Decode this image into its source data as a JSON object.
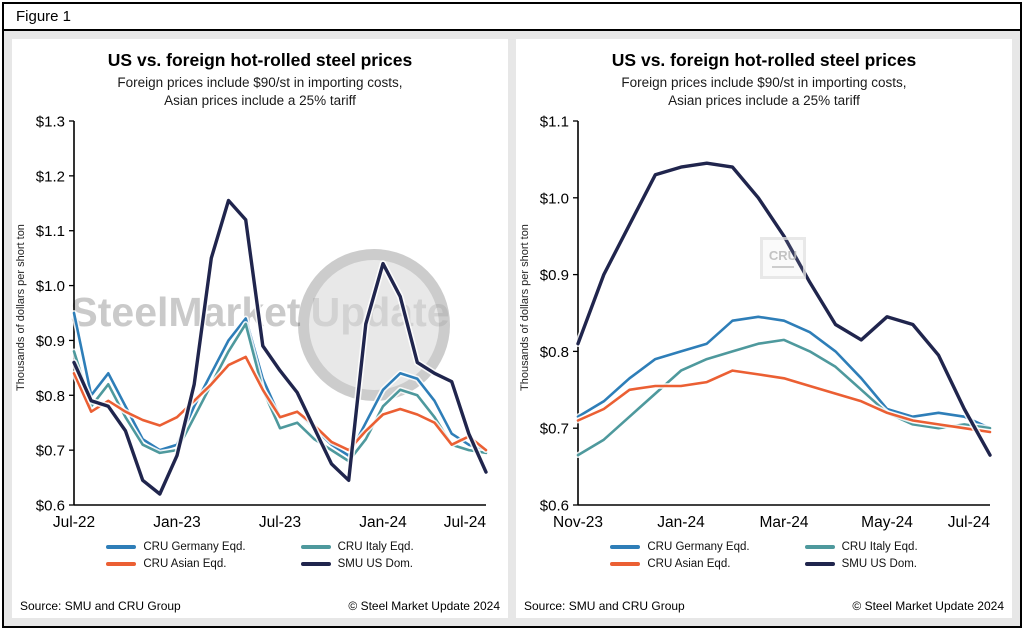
{
  "figure_label": "Figure 1",
  "panels": [
    {
      "title": "US vs. foreign hot-rolled steel prices",
      "subtitle1": "Foreign prices include $90/st in importing costs,",
      "subtitle2": "Asian prices include a 25% tariff",
      "ylabel": "Thousands of dollars per short ton",
      "source": "Source: SMU and CRU Group",
      "copyright": "© Steel Market Update 2024",
      "watermark_main": "SteelMarket",
      "watermark_sub": "Update"
    },
    {
      "title": "US vs. foreign hot-rolled steel prices",
      "subtitle1": "Foreign prices include $90/st in importing costs,",
      "subtitle2": "Asian prices include a 25% tariff",
      "ylabel": "Thousands of dollars per short ton",
      "source": "Source: SMU and CRU Group",
      "copyright": "© Steel Market Update 2024",
      "watermark_cru": "CRU"
    }
  ],
  "legend": {
    "items": [
      {
        "label": "CRU Germany Eqd.",
        "color": "#2e7eb8"
      },
      {
        "label": "CRU Italy Eqd.",
        "color": "#4e999d"
      },
      {
        "label": "CRU Asian Eqd.",
        "color": "#eb5f33"
      },
      {
        "label": "SMU US Dom.",
        "color": "#20254d"
      }
    ]
  },
  "chart_data": [
    {
      "type": "line",
      "title": "US vs. foreign hot-rolled steel prices",
      "subtitle": "Foreign prices include $90/st in importing costs, Asian prices include a 25% tariff",
      "ylabel": "Thousands of dollars per short ton",
      "ylim": [
        0.6,
        1.3
      ],
      "ytick_step": 0.1,
      "ytick_format": "$0.0",
      "grid": false,
      "legend_position": "bottom",
      "x_months": [
        "Jul-22",
        "Aug-22",
        "Sep-22",
        "Oct-22",
        "Nov-22",
        "Dec-22",
        "Jan-23",
        "Feb-23",
        "Mar-23",
        "Apr-23",
        "May-23",
        "Jun-23",
        "Jul-23",
        "Aug-23",
        "Sep-23",
        "Oct-23",
        "Nov-23",
        "Dec-23",
        "Jan-24",
        "Feb-24",
        "Mar-24",
        "Apr-24",
        "May-24",
        "Jun-24",
        "Jul-24"
      ],
      "x_ticks": [
        {
          "index": 0,
          "label": "Jul-22"
        },
        {
          "index": 6,
          "label": "Jan-23"
        },
        {
          "index": 12,
          "label": "Jul-23"
        },
        {
          "index": 18,
          "label": "Jan-24"
        },
        {
          "index": 24,
          "label": "Jul-24"
        }
      ],
      "series": [
        {
          "name": "CRU Germany Eqd.",
          "color": "#2e7eb8",
          "values": [
            0.95,
            0.8,
            0.84,
            0.78,
            0.72,
            0.7,
            0.71,
            0.78,
            0.84,
            0.9,
            0.94,
            0.83,
            0.76,
            0.77,
            0.74,
            0.71,
            0.69,
            0.75,
            0.81,
            0.84,
            0.83,
            0.79,
            0.73,
            0.71,
            0.7
          ]
        },
        {
          "name": "CRU Italy Eqd.",
          "color": "#4e999d",
          "values": [
            0.88,
            0.78,
            0.82,
            0.76,
            0.71,
            0.695,
            0.7,
            0.76,
            0.82,
            0.88,
            0.93,
            0.81,
            0.74,
            0.75,
            0.72,
            0.7,
            0.68,
            0.72,
            0.78,
            0.81,
            0.8,
            0.76,
            0.71,
            0.7,
            0.695
          ]
        },
        {
          "name": "CRU Asian Eqd.",
          "color": "#eb5f33",
          "values": [
            0.84,
            0.77,
            0.79,
            0.77,
            0.755,
            0.745,
            0.76,
            0.79,
            0.82,
            0.855,
            0.87,
            0.81,
            0.76,
            0.77,
            0.745,
            0.715,
            0.7,
            0.735,
            0.765,
            0.775,
            0.765,
            0.75,
            0.71,
            0.725,
            0.7
          ]
        },
        {
          "name": "SMU US Dom.",
          "color": "#20254d",
          "values": [
            0.86,
            0.79,
            0.78,
            0.735,
            0.645,
            0.62,
            0.69,
            0.82,
            1.05,
            1.155,
            1.12,
            0.89,
            0.845,
            0.805,
            0.74,
            0.675,
            0.645,
            0.93,
            1.04,
            0.98,
            0.86,
            0.84,
            0.825,
            0.73,
            0.66
          ]
        }
      ]
    },
    {
      "type": "line",
      "title": "US vs. foreign hot-rolled steel prices",
      "subtitle": "Foreign prices include $90/st in importing costs, Asian prices include a 25% tariff",
      "ylabel": "Thousands of dollars per short ton",
      "ylim": [
        0.6,
        1.1
      ],
      "ytick_step": 0.1,
      "ytick_format": "$0.0",
      "grid": false,
      "legend_position": "bottom",
      "x_range": [
        "Nov-23",
        "Jul-24"
      ],
      "n_points": 17,
      "x_ticks": [
        {
          "index": 0,
          "label": "Nov-23"
        },
        {
          "index": 4,
          "label": "Jan-24"
        },
        {
          "index": 8,
          "label": "Mar-24"
        },
        {
          "index": 12,
          "label": "May-24"
        },
        {
          "index": 16,
          "label": "Jul-24"
        }
      ],
      "series": [
        {
          "name": "CRU Germany Eqd.",
          "color": "#2e7eb8",
          "values": [
            0.715,
            0.735,
            0.765,
            0.79,
            0.8,
            0.81,
            0.84,
            0.845,
            0.84,
            0.825,
            0.8,
            0.765,
            0.725,
            0.715,
            0.72,
            0.715,
            0.7
          ]
        },
        {
          "name": "CRU Italy Eqd.",
          "color": "#4e999d",
          "values": [
            0.665,
            0.685,
            0.715,
            0.745,
            0.775,
            0.79,
            0.8,
            0.81,
            0.815,
            0.8,
            0.78,
            0.75,
            0.72,
            0.705,
            0.7,
            0.705,
            0.7
          ]
        },
        {
          "name": "CRU Asian Eqd.",
          "color": "#eb5f33",
          "values": [
            0.71,
            0.725,
            0.75,
            0.755,
            0.755,
            0.76,
            0.775,
            0.77,
            0.765,
            0.755,
            0.745,
            0.735,
            0.72,
            0.71,
            0.705,
            0.7,
            0.695
          ]
        },
        {
          "name": "SMU US Dom.",
          "color": "#20254d",
          "values": [
            0.81,
            0.9,
            0.965,
            1.03,
            1.04,
            1.045,
            1.04,
            1.0,
            0.95,
            0.89,
            0.835,
            0.815,
            0.845,
            0.835,
            0.795,
            0.725,
            0.665
          ]
        }
      ]
    }
  ]
}
